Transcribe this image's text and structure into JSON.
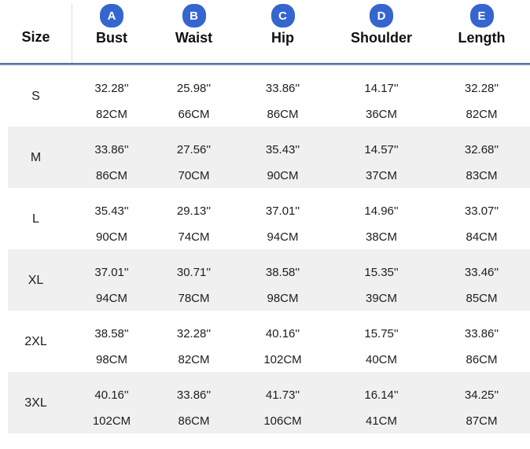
{
  "header": {
    "size_label": "Size",
    "columns": [
      {
        "letter": "A",
        "label": "Bust"
      },
      {
        "letter": "B",
        "label": "Waist"
      },
      {
        "letter": "C",
        "label": "Hip"
      },
      {
        "letter": "D",
        "label": "Shoulder"
      },
      {
        "letter": "E",
        "label": "Length"
      }
    ]
  },
  "rows": [
    {
      "size": "S",
      "bust": {
        "in": "32.28''",
        "cm": "82CM"
      },
      "waist": {
        "in": "25.98''",
        "cm": "66CM"
      },
      "hip": {
        "in": "33.86''",
        "cm": "86CM"
      },
      "shoulder": {
        "in": "14.17''",
        "cm": "36CM"
      },
      "length": {
        "in": "32.28''",
        "cm": "82CM"
      }
    },
    {
      "size": "M",
      "bust": {
        "in": "33.86''",
        "cm": "86CM"
      },
      "waist": {
        "in": "27.56''",
        "cm": "70CM"
      },
      "hip": {
        "in": "35.43''",
        "cm": "90CM"
      },
      "shoulder": {
        "in": "14.57''",
        "cm": "37CM"
      },
      "length": {
        "in": "32.68''",
        "cm": "83CM"
      }
    },
    {
      "size": "L",
      "bust": {
        "in": "35.43''",
        "cm": "90CM"
      },
      "waist": {
        "in": "29.13''",
        "cm": "74CM"
      },
      "hip": {
        "in": "37.01''",
        "cm": "94CM"
      },
      "shoulder": {
        "in": "14.96''",
        "cm": "38CM"
      },
      "length": {
        "in": "33.07''",
        "cm": "84CM"
      }
    },
    {
      "size": "XL",
      "bust": {
        "in": "37.01''",
        "cm": "94CM"
      },
      "waist": {
        "in": "30.71''",
        "cm": "78CM"
      },
      "hip": {
        "in": "38.58''",
        "cm": "98CM"
      },
      "shoulder": {
        "in": "15.35''",
        "cm": "39CM"
      },
      "length": {
        "in": "33.46''",
        "cm": "85CM"
      }
    },
    {
      "size": "2XL",
      "bust": {
        "in": "38.58''",
        "cm": "98CM"
      },
      "waist": {
        "in": "32.28''",
        "cm": "82CM"
      },
      "hip": {
        "in": "40.16''",
        "cm": "102CM"
      },
      "shoulder": {
        "in": "15.75''",
        "cm": "40CM"
      },
      "length": {
        "in": "33.86''",
        "cm": "86CM"
      }
    },
    {
      "size": "3XL",
      "bust": {
        "in": "40.16''",
        "cm": "102CM"
      },
      "waist": {
        "in": "33.86''",
        "cm": "86CM"
      },
      "hip": {
        "in": "41.73''",
        "cm": "106CM"
      },
      "shoulder": {
        "in": "16.14''",
        "cm": "41CM"
      },
      "length": {
        "in": "34.25''",
        "cm": "87CM"
      }
    }
  ],
  "colors": {
    "badge_blue": "#3565cf",
    "stripe_gray": "#f0f0f1",
    "header_line_dark": "#45608d",
    "header_line_light": "#93a5c9",
    "text": "#1d1d1f"
  },
  "chart_data": {
    "type": "table",
    "title": "Garment size chart",
    "columns": [
      "Size",
      "A Bust",
      "B Waist",
      "C Hip",
      "D Shoulder",
      "E Length"
    ],
    "rows_inches": [
      [
        "S",
        32.28,
        25.98,
        33.86,
        14.17,
        32.28
      ],
      [
        "M",
        33.86,
        27.56,
        35.43,
        14.57,
        32.68
      ],
      [
        "L",
        35.43,
        29.13,
        37.01,
        14.96,
        33.07
      ],
      [
        "XL",
        37.01,
        30.71,
        38.58,
        15.35,
        33.46
      ],
      [
        "2XL",
        38.58,
        32.28,
        40.16,
        15.75,
        33.86
      ],
      [
        "3XL",
        40.16,
        33.86,
        41.73,
        16.14,
        34.25
      ]
    ],
    "rows_cm": [
      [
        "S",
        82,
        66,
        86,
        36,
        82
      ],
      [
        "M",
        86,
        70,
        90,
        37,
        83
      ],
      [
        "L",
        90,
        74,
        94,
        38,
        84
      ],
      [
        "XL",
        94,
        78,
        98,
        39,
        85
      ],
      [
        "2XL",
        98,
        82,
        102,
        40,
        86
      ],
      [
        "3XL",
        102,
        86,
        106,
        41,
        87
      ]
    ]
  }
}
